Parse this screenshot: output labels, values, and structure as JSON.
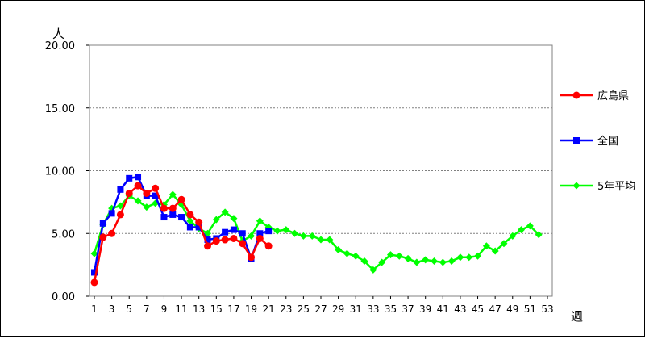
{
  "chart_data": {
    "type": "line",
    "y_unit": "人",
    "x_unit": "週",
    "ylim": [
      0,
      20
    ],
    "xlim": [
      1,
      53
    ],
    "y_ticks": [
      "0.00",
      "5.00",
      "10.00",
      "15.00",
      "20.00"
    ],
    "x_ticks": [
      "1",
      "3",
      "5",
      "7",
      "9",
      "11",
      "13",
      "15",
      "17",
      "19",
      "21",
      "23",
      "25",
      "27",
      "29",
      "31",
      "33",
      "35",
      "37",
      "39",
      "41",
      "43",
      "45",
      "47",
      "49",
      "51",
      "53"
    ],
    "grid": "horizontal dotted",
    "legend_position": "right",
    "series": [
      {
        "name": "広島県",
        "color": "#ff0000",
        "marker": "circle",
        "x": [
          1,
          2,
          3,
          4,
          5,
          6,
          7,
          8,
          9,
          10,
          11,
          12,
          13,
          14,
          15,
          16,
          17,
          18,
          19,
          20,
          21
        ],
        "values": [
          1.1,
          4.7,
          5.0,
          6.5,
          8.2,
          8.8,
          8.2,
          8.6,
          7.0,
          7.0,
          7.7,
          6.5,
          5.9,
          4.0,
          4.4,
          4.5,
          4.6,
          4.2,
          3.1,
          4.6,
          4.0
        ]
      },
      {
        "name": "全国",
        "color": "#0000ff",
        "marker": "square",
        "x": [
          1,
          2,
          3,
          4,
          5,
          6,
          7,
          8,
          9,
          10,
          11,
          12,
          13,
          14,
          15,
          16,
          17,
          18,
          19,
          20,
          21
        ],
        "values": [
          1.9,
          5.8,
          6.6,
          8.5,
          9.4,
          9.5,
          8.0,
          8.0,
          6.3,
          6.5,
          6.3,
          5.5,
          5.5,
          4.5,
          4.6,
          5.1,
          5.3,
          5.0,
          3.0,
          5.0,
          5.2
        ]
      },
      {
        "name": "5年平均",
        "color": "#00ff00",
        "marker": "diamond",
        "x": [
          1,
          2,
          3,
          4,
          5,
          6,
          7,
          8,
          9,
          10,
          11,
          12,
          13,
          14,
          15,
          16,
          17,
          18,
          19,
          20,
          21,
          22,
          23,
          24,
          25,
          26,
          27,
          28,
          29,
          30,
          31,
          32,
          33,
          34,
          35,
          36,
          37,
          38,
          39,
          40,
          41,
          42,
          43,
          44,
          45,
          46,
          47,
          48,
          49,
          50,
          51,
          52
        ],
        "values": [
          3.4,
          5.7,
          7.0,
          7.2,
          8.0,
          7.6,
          7.1,
          7.4,
          7.3,
          8.1,
          7.3,
          6.0,
          5.4,
          5.0,
          6.1,
          6.7,
          6.2,
          4.4,
          4.8,
          6.0,
          5.5,
          5.2,
          5.3,
          5.0,
          4.8,
          4.8,
          4.5,
          4.5,
          3.7,
          3.4,
          3.2,
          2.8,
          2.1,
          2.7,
          3.3,
          3.2,
          3.0,
          2.7,
          2.9,
          2.8,
          2.7,
          2.8,
          3.1,
          3.1,
          3.2,
          4.0,
          3.6,
          4.2,
          4.8,
          5.3,
          5.6,
          4.9
        ]
      }
    ]
  }
}
